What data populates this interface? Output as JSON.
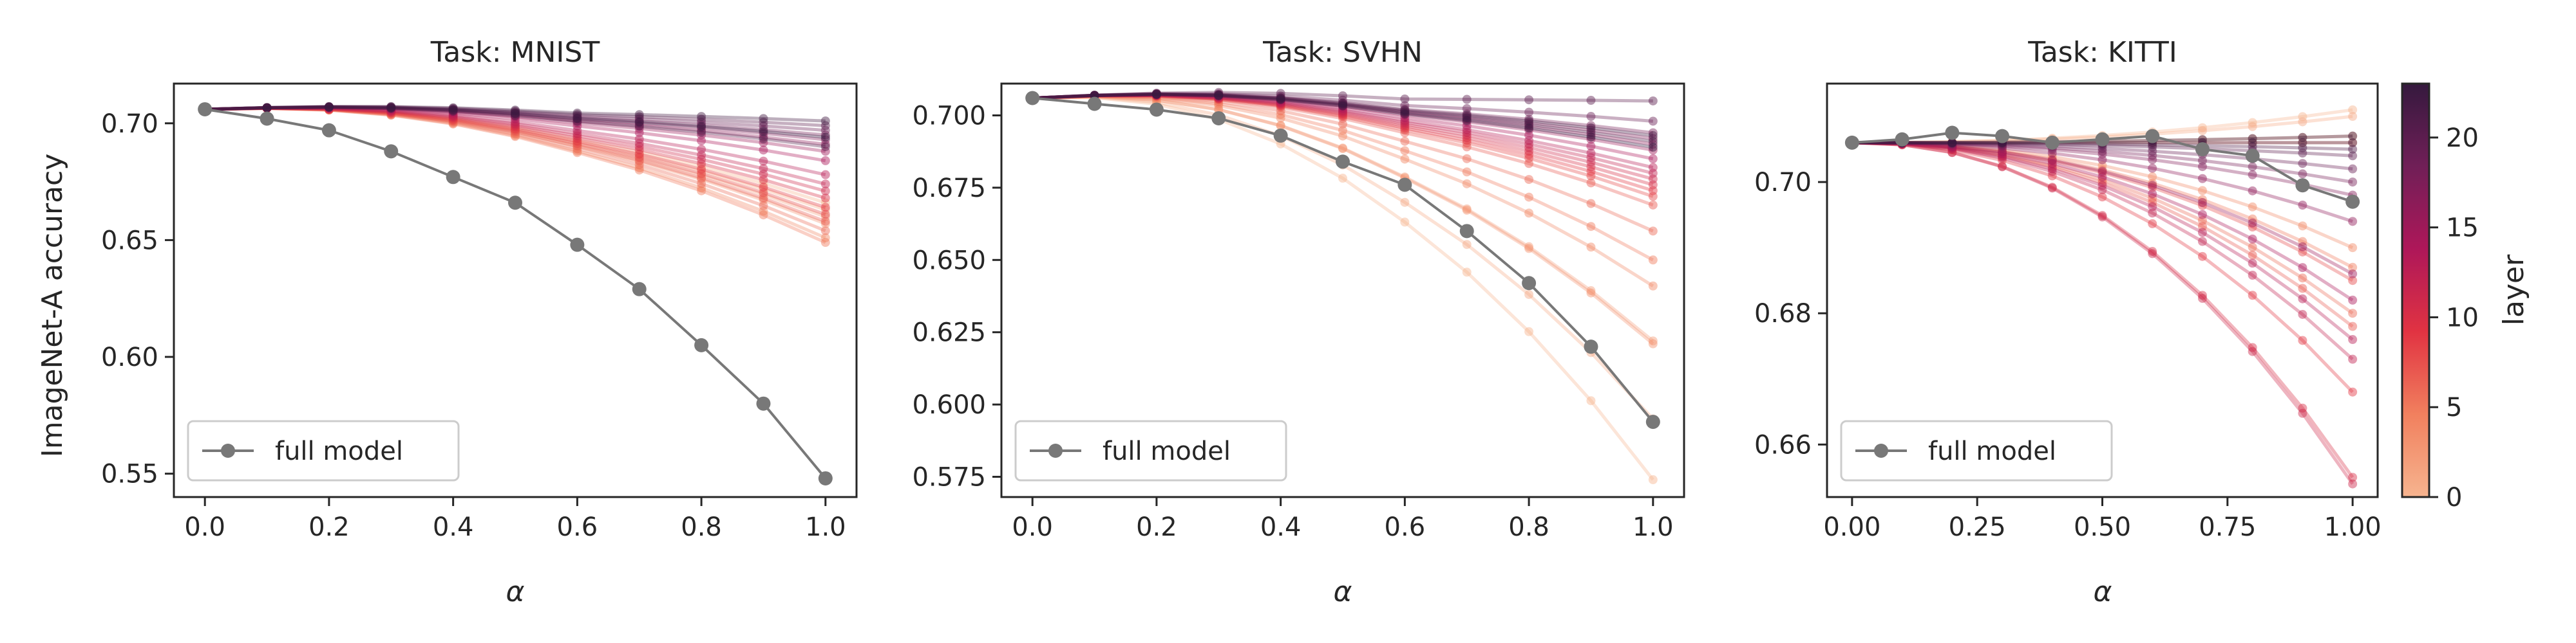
{
  "colormap": [
    "#f6b48f",
    "#f1805e",
    "#e13342",
    "#ae1759",
    "#701f57",
    "#35193e"
  ],
  "full_model_color": "#787878",
  "colorbar": {
    "label": "layer",
    "ticks": [
      0,
      5,
      10,
      15,
      20
    ],
    "range": [
      0,
      23
    ]
  },
  "chart_data": [
    {
      "type": "line",
      "title": "Task: MNIST",
      "xlabel": "α",
      "ylabel": "ImageNet-A accuracy",
      "xlim": [
        -0.05,
        1.05
      ],
      "ylim": [
        0.54,
        0.717
      ],
      "xticks": [
        0.0,
        0.2,
        0.4,
        0.6,
        0.8,
        1.0
      ],
      "xtick_labels": [
        "0.0",
        "0.2",
        "0.4",
        "0.6",
        "0.8",
        "1.0"
      ],
      "yticks": [
        0.55,
        0.6,
        0.65,
        0.7
      ],
      "ytick_labels": [
        "0.55",
        "0.60",
        "0.65",
        "0.70"
      ],
      "legend": {
        "label": "full model",
        "position": "lower-left"
      },
      "x": [
        0.0,
        0.1,
        0.2,
        0.3,
        0.4,
        0.5,
        0.6,
        0.7,
        0.8,
        0.9,
        1.0
      ],
      "full_model": [
        0.706,
        0.702,
        0.697,
        0.688,
        0.677,
        0.666,
        0.648,
        0.629,
        0.605,
        0.58,
        0.548
      ],
      "layer_end_values": [
        0.666,
        0.663,
        0.66,
        0.657,
        0.651,
        0.649,
        0.654,
        0.658,
        0.661,
        0.664,
        0.668,
        0.671,
        0.674,
        0.678,
        0.684,
        0.688,
        0.691,
        0.693,
        0.695,
        0.697,
        0.699,
        0.69,
        0.701,
        0.694
      ],
      "layer_peak": 0.0015
    },
    {
      "type": "line",
      "title": "Task: SVHN",
      "xlabel": "α",
      "ylabel": "",
      "xlim": [
        -0.05,
        1.05
      ],
      "ylim": [
        0.568,
        0.711
      ],
      "xticks": [
        0.0,
        0.2,
        0.4,
        0.6,
        0.8,
        1.0
      ],
      "xtick_labels": [
        "0.0",
        "0.2",
        "0.4",
        "0.6",
        "0.8",
        "1.0"
      ],
      "yticks": [
        0.575,
        0.6,
        0.625,
        0.65,
        0.675,
        0.7
      ],
      "ytick_labels": [
        "0.575",
        "0.600",
        "0.625",
        "0.650",
        "0.675",
        "0.700"
      ],
      "legend": {
        "label": "full model",
        "position": "lower-left"
      },
      "x": [
        0.0,
        0.1,
        0.2,
        0.3,
        0.4,
        0.5,
        0.6,
        0.7,
        0.8,
        0.9,
        1.0
      ],
      "full_model": [
        0.706,
        0.704,
        0.702,
        0.699,
        0.693,
        0.684,
        0.676,
        0.66,
        0.642,
        0.62,
        0.594
      ],
      "layer_end_values": [
        0.574,
        0.595,
        0.622,
        0.621,
        0.641,
        0.65,
        0.66,
        0.669,
        0.672,
        0.674,
        0.676,
        0.678,
        0.68,
        0.682,
        0.685,
        0.688,
        0.69,
        0.692,
        0.694,
        0.698,
        0.705,
        0.691,
        0.693,
        0.689
      ],
      "layer_peak": 0.002
    },
    {
      "type": "line",
      "title": "Task: KITTI",
      "xlabel": "α",
      "ylabel": "",
      "xlim": [
        -0.05,
        1.05
      ],
      "ylim": [
        0.652,
        0.715
      ],
      "xticks": [
        0.0,
        0.25,
        0.5,
        0.75,
        1.0
      ],
      "xtick_labels": [
        "0.00",
        "0.25",
        "0.50",
        "0.75",
        "1.00"
      ],
      "yticks": [
        0.66,
        0.68,
        0.7
      ],
      "ytick_labels": [
        "0.66",
        "0.68",
        "0.70"
      ],
      "legend": {
        "label": "full model",
        "position": "lower-left"
      },
      "x": [
        0.0,
        0.1,
        0.2,
        0.3,
        0.4,
        0.5,
        0.6,
        0.7,
        0.8,
        0.9,
        1.0
      ],
      "full_model": [
        0.706,
        0.7065,
        0.7075,
        0.707,
        0.706,
        0.7065,
        0.707,
        0.705,
        0.704,
        0.6995,
        0.697
      ],
      "layer_end_values": [
        0.711,
        0.71,
        0.707,
        0.706,
        0.69,
        0.687,
        0.68,
        0.678,
        0.685,
        0.668,
        0.655,
        0.654,
        0.673,
        0.676,
        0.682,
        0.686,
        0.694,
        0.698,
        0.7,
        0.702,
        0.704,
        0.705,
        0.706,
        0.707
      ],
      "layer_peak": 0.0
    }
  ]
}
